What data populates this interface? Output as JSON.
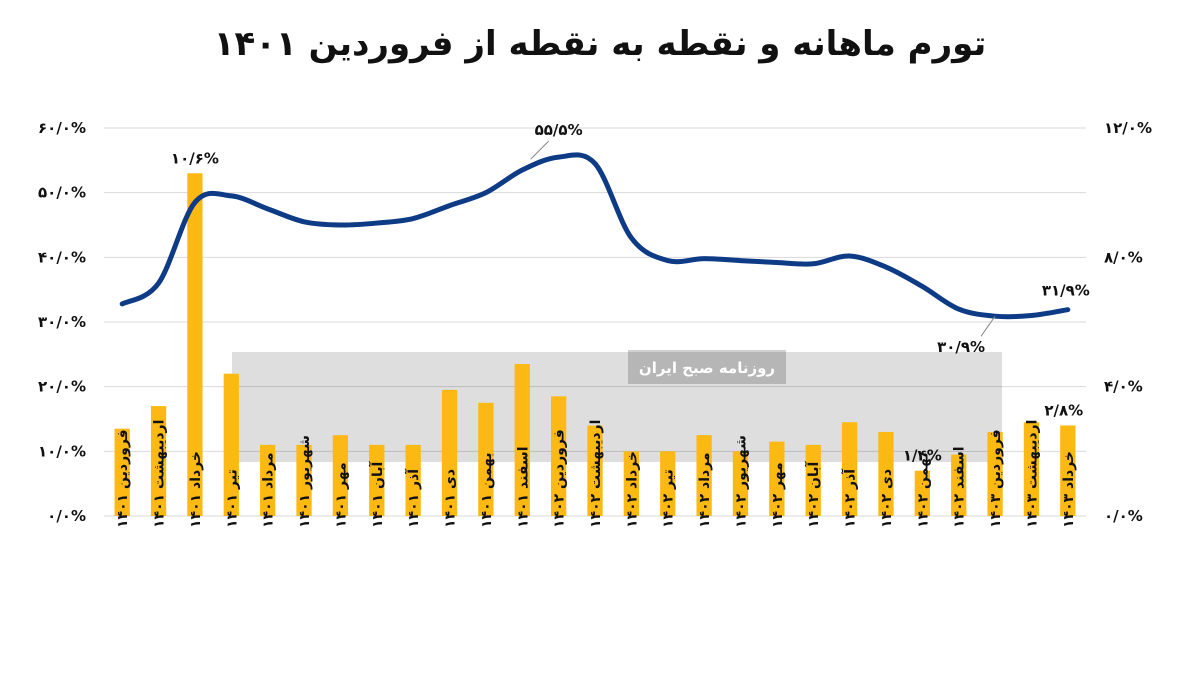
{
  "chart_data": {
    "type": "bar+line",
    "title": "تورم ماهانه و نقطه به نقطه از فروردین ۱۴۰۱",
    "categories": [
      "فروردین ۱۴۰۱",
      "اردیبهشت ۱۴۰۱",
      "خرداد ۱۴۰۱",
      "تیر ۱۴۰۱",
      "مرداد ۱۴۰۱",
      "شهریور ۱۴۰۱",
      "مهر ۱۴۰۱",
      "آبان ۱۴۰۱",
      "آذر ۱۴۰۱",
      "دی ۱۴۰۱",
      "بهمن ۱۴۰۱",
      "اسفند ۱۴۰۱",
      "فروردین ۱۴۰۲",
      "اردیبهشت ۱۴۰۲",
      "خرداد ۱۴۰۲",
      "تیر ۱۴۰۲",
      "مرداد ۱۴۰۲",
      "شهریور ۱۴۰۲",
      "مهر ۱۴۰۲",
      "آبان ۱۴۰۲",
      "آذر ۱۴۰۲",
      "دی ۱۴۰۲",
      "بهمن ۱۴۰۲",
      "اسفند ۱۴۰۲",
      "فروردین ۱۴۰۳",
      "اردیبهشت ۱۴۰۳",
      "خرداد ۱۴۰۳"
    ],
    "series": [
      {
        "type": "bar",
        "axis": "right",
        "color": "#FDB913",
        "values": [
          2.7,
          3.4,
          10.6,
          4.4,
          2.2,
          2.2,
          2.5,
          2.2,
          2.2,
          3.9,
          3.5,
          4.7,
          3.7,
          2.8,
          2.0,
          2.0,
          2.5,
          2.0,
          2.3,
          2.2,
          2.9,
          2.6,
          1.4,
          1.9,
          2.6,
          2.9,
          2.8
        ]
      },
      {
        "type": "line",
        "axis": "left",
        "color": "#0E3B85",
        "values": [
          32.8,
          36.0,
          48.5,
          49.5,
          47.5,
          45.5,
          45.0,
          45.3,
          46.0,
          48.0,
          50.0,
          53.5,
          55.5,
          54.5,
          43.0,
          39.5,
          39.8,
          39.5,
          39.2,
          39.0,
          40.2,
          38.5,
          35.5,
          32.0,
          30.9,
          31.0,
          31.9
        ]
      }
    ],
    "y_left": {
      "min": 0,
      "max": 60,
      "ticks": [
        "۰/۰%",
        "۱۰/۰%",
        "۲۰/۰%",
        "۳۰/۰%",
        "۴۰/۰%",
        "۵۰/۰%",
        "۶۰/۰%"
      ]
    },
    "y_right": {
      "min": 0,
      "max": 12,
      "ticks": [
        "۰/۰%",
        "۴/۰%",
        "۸/۰%",
        "۱۲/۰%"
      ]
    },
    "grid": true,
    "annotations": [
      {
        "text": "۱۰/۶%",
        "series": 0,
        "index": 2
      },
      {
        "text": "۵۵/۵%",
        "series": 1,
        "index": 12
      },
      {
        "text": "۱/۴%",
        "series": 0,
        "index": 22
      },
      {
        "text": "۳۰/۹%",
        "series": 1,
        "index": 24
      },
      {
        "text": "۲/۸%",
        "series": 0,
        "index": 26
      },
      {
        "text": "۳۱/۹%",
        "series": 1,
        "index": 26
      }
    ],
    "watermark": {
      "text": "روزنامه صبح ایران"
    }
  }
}
